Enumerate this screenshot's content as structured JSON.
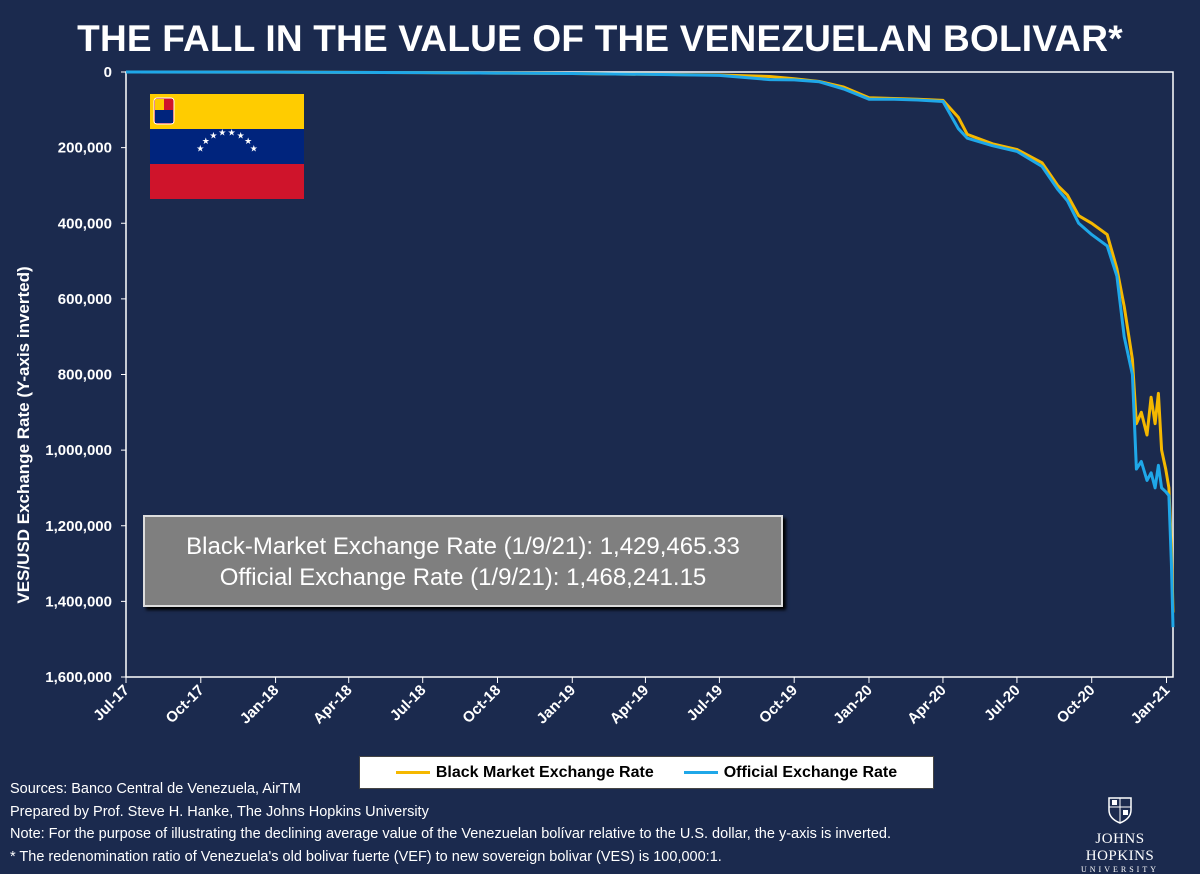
{
  "title": "THE FALL IN THE VALUE OF THE VENEZUELAN BOLIVAR*",
  "info_box": {
    "line1": "Black-Market Exchange Rate (1/9/21): 1,429,465.33",
    "line2": "Official Exchange Rate (1/9/21): 1,468,241.15"
  },
  "notes": [
    "Sources: Banco Central de Venezuela, AirTM",
    "Prepared by Prof. Steve H. Hanke, The Johns Hopkins University",
    "Note: For the purpose of illustrating the declining average value of the Venezuelan bolívar relative to the U.S. dollar, the y-axis is inverted.",
    "* The redenomination ratio of Venezuela's old bolivar fuerte (VEF) to new sovereign bolivar (VES) is 100,000:1."
  ],
  "logo": {
    "name": "JOHNS HOPKINS",
    "sub": "UNIVERSITY",
    "icon": "jhu-shield-icon"
  },
  "flag": {
    "icon": "venezuela-flag-icon",
    "colors": [
      "#ffcc00",
      "#00247d",
      "#cf142b"
    ]
  },
  "chart_data": {
    "type": "line",
    "ylabel": "VES/USD Exchange Rate (Y-axis inverted)",
    "y_inverted": true,
    "ylim": [
      0,
      1600000
    ],
    "y_ticks": [
      {
        "value": 0,
        "label": "0"
      },
      {
        "value": 200000,
        "label": "200,000"
      },
      {
        "value": 400000,
        "label": "400,000"
      },
      {
        "value": 600000,
        "label": "600,000"
      },
      {
        "value": 800000,
        "label": "800,000"
      },
      {
        "value": 1000000,
        "label": "1,000,000"
      },
      {
        "value": 1200000,
        "label": "1,200,000"
      },
      {
        "value": 1400000,
        "label": "1,400,000"
      },
      {
        "value": 1600000,
        "label": "1,600,000"
      }
    ],
    "x_range": [
      "2017-07",
      "2021-01-09"
    ],
    "x_ticks": [
      "Jul-17",
      "Oct-17",
      "Jan-18",
      "Apr-18",
      "Jul-18",
      "Oct-18",
      "Jan-19",
      "Apr-19",
      "Jul-19",
      "Oct-19",
      "Jan-20",
      "Apr-20",
      "Jul-20",
      "Oct-20",
      "Jan-21"
    ],
    "grid": false,
    "legend_position": "bottom",
    "series": [
      {
        "name": "Black Market Exchange Rate",
        "color": "#f5b800",
        "points": [
          [
            "2017-07",
            0
          ],
          [
            "2018-01",
            300
          ],
          [
            "2018-07",
            1500
          ],
          [
            "2018-10",
            3000
          ],
          [
            "2019-01",
            4000
          ],
          [
            "2019-04",
            6000
          ],
          [
            "2019-07",
            8000
          ],
          [
            "2019-09",
            12000
          ],
          [
            "2019-10",
            18000
          ],
          [
            "2019-11",
            25000
          ],
          [
            "2019-12",
            40000
          ],
          [
            "2020-01",
            68000
          ],
          [
            "2020-02",
            70000
          ],
          [
            "2020-03",
            72000
          ],
          [
            "2020-04",
            75000
          ],
          [
            "2020-04-20",
            120000
          ],
          [
            "2020-05",
            165000
          ],
          [
            "2020-06",
            190000
          ],
          [
            "2020-07",
            205000
          ],
          [
            "2020-08",
            240000
          ],
          [
            "2020-08-20",
            300000
          ],
          [
            "2020-09",
            325000
          ],
          [
            "2020-09-15",
            380000
          ],
          [
            "2020-10",
            400000
          ],
          [
            "2020-10-20",
            430000
          ],
          [
            "2020-11",
            520000
          ],
          [
            "2020-11-10",
            620000
          ],
          [
            "2020-11-20",
            760000
          ],
          [
            "2020-11-25",
            930000
          ],
          [
            "2020-12-01",
            900000
          ],
          [
            "2020-12-08",
            960000
          ],
          [
            "2020-12-13",
            860000
          ],
          [
            "2020-12-18",
            930000
          ],
          [
            "2020-12-22",
            850000
          ],
          [
            "2020-12-26",
            1000000
          ],
          [
            "2020-12-31",
            1050000
          ],
          [
            "2021-01-04",
            1100000
          ],
          [
            "2021-01-07",
            1250000
          ],
          [
            "2021-01-09",
            1429465.33
          ]
        ]
      },
      {
        "name": "Official Exchange Rate",
        "color": "#1fa7e8",
        "points": [
          [
            "2017-07",
            0
          ],
          [
            "2018-01",
            300
          ],
          [
            "2018-07",
            1500
          ],
          [
            "2018-10",
            3000
          ],
          [
            "2019-01",
            4000
          ],
          [
            "2019-04",
            6000
          ],
          [
            "2019-07",
            9000
          ],
          [
            "2019-09",
            20000
          ],
          [
            "2019-10",
            21000
          ],
          [
            "2019-11",
            26000
          ],
          [
            "2019-12",
            45000
          ],
          [
            "2020-01",
            72000
          ],
          [
            "2020-02",
            72000
          ],
          [
            "2020-03",
            74000
          ],
          [
            "2020-04",
            78000
          ],
          [
            "2020-04-20",
            150000
          ],
          [
            "2020-05",
            175000
          ],
          [
            "2020-06",
            195000
          ],
          [
            "2020-07",
            210000
          ],
          [
            "2020-08",
            250000
          ],
          [
            "2020-08-20",
            310000
          ],
          [
            "2020-09",
            340000
          ],
          [
            "2020-09-15",
            400000
          ],
          [
            "2020-10",
            430000
          ],
          [
            "2020-10-20",
            460000
          ],
          [
            "2020-11",
            540000
          ],
          [
            "2020-11-10",
            700000
          ],
          [
            "2020-11-20",
            800000
          ],
          [
            "2020-11-25",
            1050000
          ],
          [
            "2020-12-01",
            1030000
          ],
          [
            "2020-12-08",
            1080000
          ],
          [
            "2020-12-13",
            1060000
          ],
          [
            "2020-12-18",
            1100000
          ],
          [
            "2020-12-22",
            1040000
          ],
          [
            "2020-12-26",
            1100000
          ],
          [
            "2020-12-31",
            1110000
          ],
          [
            "2021-01-04",
            1120000
          ],
          [
            "2021-01-07",
            1300000
          ],
          [
            "2021-01-09",
            1468241.15
          ]
        ]
      }
    ]
  }
}
